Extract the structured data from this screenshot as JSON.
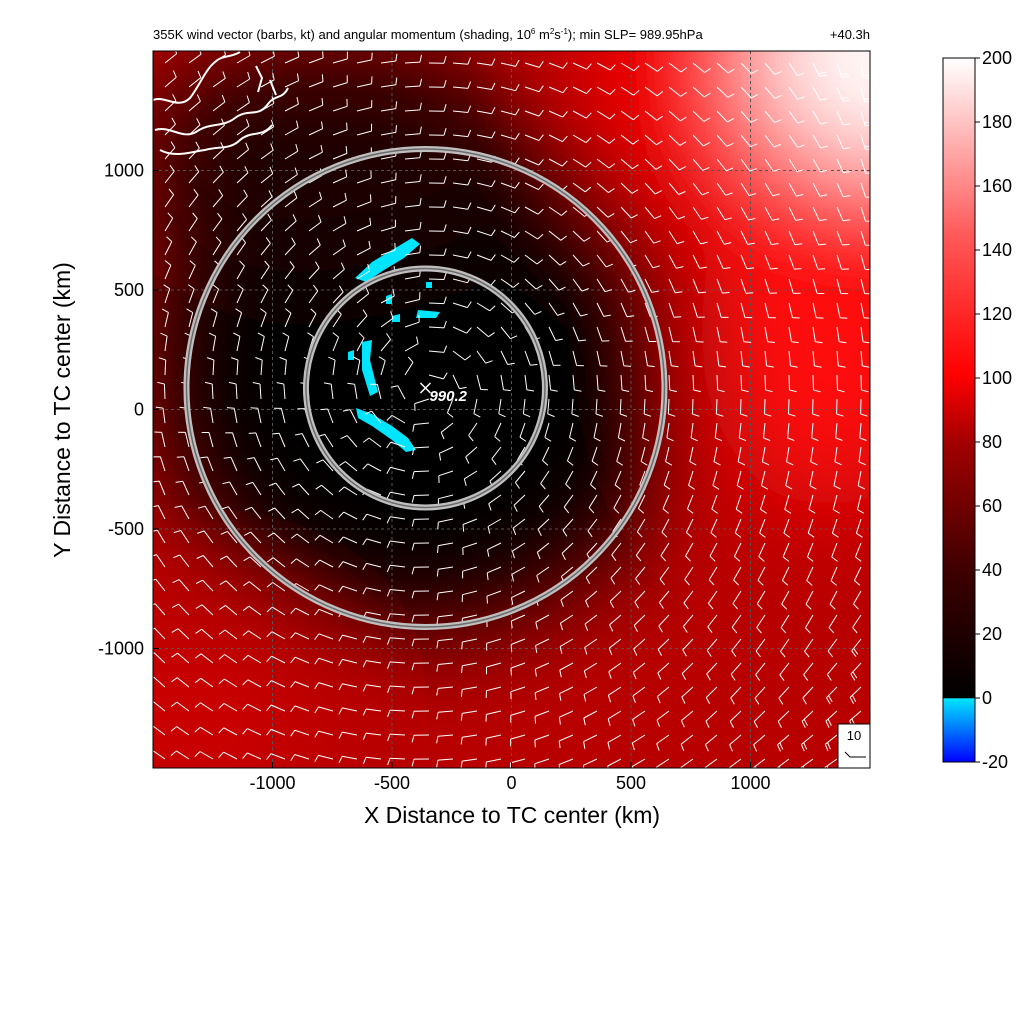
{
  "chart_data": {
    "type": "heatmap",
    "title": "355K wind vector (barbs, kt) and angular momentum (shading, 10",
    "title_exp1": "6",
    "title_mid": " m",
    "title_exp2": "2",
    "title_mid2": "s",
    "title_exp3": "-1",
    "title_tail": "); min SLP= 989.95hPa",
    "time_label": "+40.3h",
    "xlabel": "X Distance to TC center (km)",
    "ylabel": "Y Distance to TC center (km)",
    "xlim": [
      -1500,
      1500
    ],
    "ylim": [
      -1500,
      1500
    ],
    "x_ticks": [
      -1000,
      -500,
      0,
      500,
      1000
    ],
    "y_ticks": [
      -1000,
      -500,
      0,
      500,
      1000
    ],
    "x_tick_labels": [
      "-1000",
      "-500",
      "0",
      "500",
      "1000"
    ],
    "y_tick_labels": [
      "-1000",
      "-500",
      "0",
      "500",
      "1000"
    ],
    "grid": "dashed",
    "colorbar": {
      "vmin": -20,
      "vmax": 200,
      "ticks": [
        200,
        180,
        160,
        140,
        120,
        100,
        80,
        60,
        40,
        20,
        0,
        -20
      ],
      "tick_labels": [
        "200",
        "180",
        "160",
        "140",
        "120",
        "100",
        "80",
        "60",
        "40",
        "20",
        "0",
        "-20"
      ],
      "colors": [
        "#0000ff",
        "#00e5ff",
        "#000000",
        "#8a0000",
        "#ff0000",
        "#ffffff"
      ]
    },
    "center_marker": {
      "x": -360,
      "y": 90,
      "label": "990.2"
    },
    "circles": [
      {
        "center_x": -360,
        "center_y": 90,
        "radius_km": 500
      },
      {
        "center_x": -360,
        "center_y": 90,
        "radius_km": 1000
      }
    ],
    "reference_barb": {
      "label": "10",
      "speed_kt": 10
    }
  }
}
